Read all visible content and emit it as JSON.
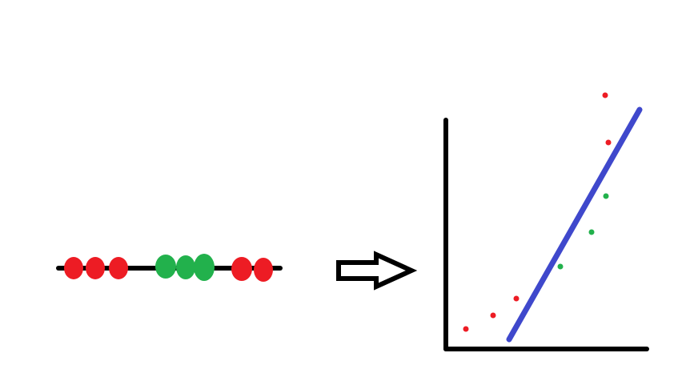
{
  "diagram": {
    "description_colors": {
      "class_a": "#ed1c24",
      "class_b": "#22b14c",
      "line": "#3f48cc",
      "ink": "#000000"
    },
    "left_panel": {
      "kind": "1d-number-line",
      "points": [
        {
          "class": "class_a",
          "order": 1
        },
        {
          "class": "class_a",
          "order": 2
        },
        {
          "class": "class_a",
          "order": 3
        },
        {
          "class": "class_b",
          "order": 4
        },
        {
          "class": "class_b",
          "order": 5
        },
        {
          "class": "class_b",
          "order": 6
        },
        {
          "class": "class_a",
          "order": 7
        },
        {
          "class": "class_a",
          "order": 8
        }
      ]
    },
    "arrow": {
      "icon": "hollow-right-arrow-icon"
    },
    "right_panel": {
      "kind": "2d-axes-with-separating-line",
      "points": [
        {
          "class": "class_a",
          "order": 1
        },
        {
          "class": "class_a",
          "order": 2
        },
        {
          "class": "class_a",
          "order": 3
        },
        {
          "class": "class_b",
          "order": 4
        },
        {
          "class": "class_b",
          "order": 5
        },
        {
          "class": "class_b",
          "order": 6
        },
        {
          "class": "class_a",
          "order": 7
        },
        {
          "class": "class_a",
          "order": 8
        }
      ]
    }
  }
}
